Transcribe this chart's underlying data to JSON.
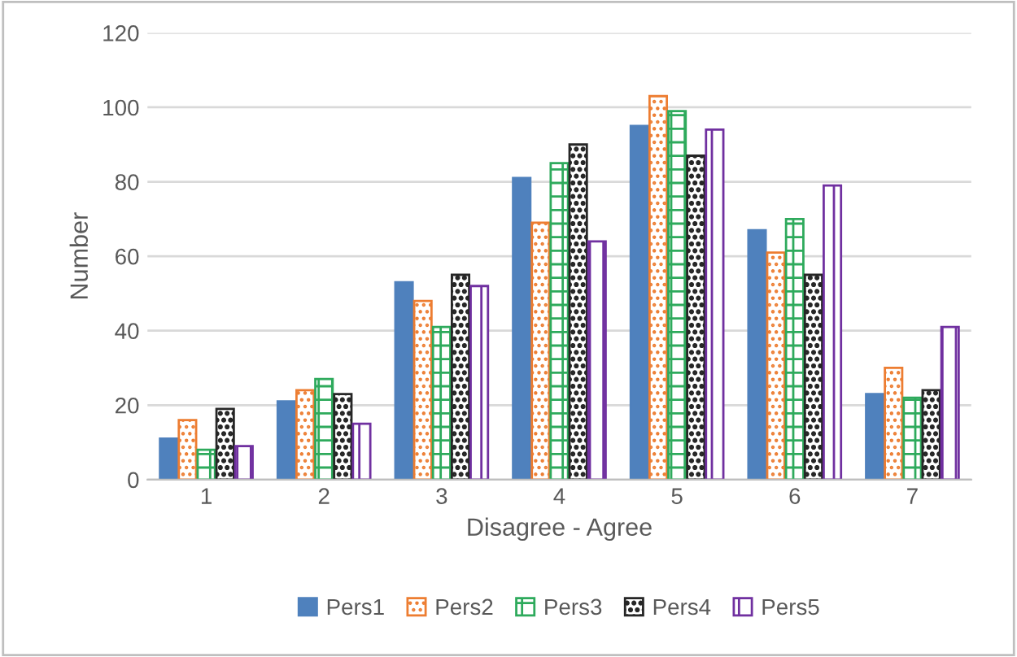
{
  "chart_data": {
    "type": "bar",
    "xlabel": "Disagree - Agree",
    "ylabel": "Number",
    "categories": [
      "1",
      "2",
      "3",
      "4",
      "5",
      "6",
      "7"
    ],
    "series": [
      {
        "name": "Pers1",
        "color": "#4f81bd",
        "values": [
          11,
          21,
          53,
          81,
          95,
          67,
          23
        ]
      },
      {
        "name": "Pers2",
        "color": "#ed7d31",
        "values": [
          16,
          24,
          48,
          69,
          103,
          61,
          30
        ]
      },
      {
        "name": "Pers3",
        "color": "#2eaa5c",
        "values": [
          8,
          27,
          41,
          85,
          99,
          70,
          22
        ]
      },
      {
        "name": "Pers4",
        "color": "#262626",
        "values": [
          19,
          23,
          55,
          90,
          87,
          55,
          24
        ]
      },
      {
        "name": "Pers5",
        "color": "#7030a0",
        "values": [
          9,
          15,
          52,
          64,
          94,
          79,
          41
        ]
      }
    ],
    "ylim": [
      0,
      120
    ],
    "yticks": [
      0,
      20,
      40,
      60,
      80,
      100,
      120
    ],
    "grid": "y",
    "legend": "bottom"
  }
}
